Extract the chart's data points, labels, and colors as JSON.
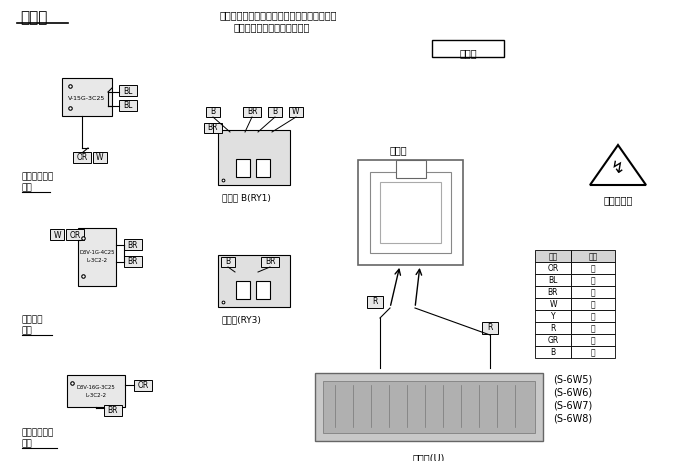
{
  "title": "接线图",
  "note_line1": "注：置换元件时，请按图所示检查导线颜色。",
  "note_line2": "括号内所指为接插件的颜色。",
  "xin_gao_bi": "新高比",
  "warning_text": "注意：高压",
  "label_relay_b": "继电器 B(RY1)",
  "label_relay_3": "继电器(RY3)",
  "label_magnetron": "磁控管",
  "label_inverter": "变频器(U)",
  "label_primary_line1": "初级碰锁开关",
  "label_primary_line2": "顶部",
  "label_short_line1": "短路开关",
  "label_short_line2": "中部",
  "label_secondary_line1": "次级碰锁开关",
  "label_secondary_line2": "底部",
  "table_header": [
    "符号",
    "颜色"
  ],
  "table_rows": [
    [
      "OR",
      "橙"
    ],
    [
      "BL",
      "蓝"
    ],
    [
      "BR",
      "棕"
    ],
    [
      "W",
      "白"
    ],
    [
      "Y",
      "黄"
    ],
    [
      "R",
      "红"
    ],
    [
      "GR",
      "灰"
    ],
    [
      "B",
      "黑"
    ]
  ],
  "model_codes": [
    "(S-6W5)",
    "(S-6W6)",
    "(S-6W7)",
    "(S-6W8)"
  ],
  "bg_color": "#ffffff",
  "fg_color": "#000000"
}
